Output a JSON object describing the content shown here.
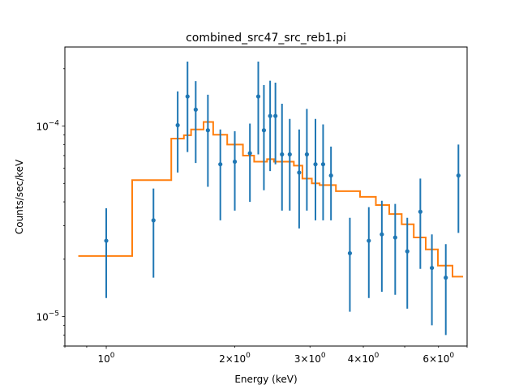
{
  "chart_data": {
    "type": "scatter",
    "title": "combined_src47_src_reb1.pi",
    "xlabel": "Energy (keV)",
    "ylabel": "Counts/sec/keV",
    "x_scale": "log",
    "y_scale": "log",
    "xlim": [
      0.8,
      7.0
    ],
    "ylim": [
      7e-06,
      0.00026
    ],
    "grid": false,
    "legend": "none",
    "x_major_ticks": [
      {
        "value": 1,
        "base": "10",
        "exp": "0"
      }
    ],
    "x_minor_labeled_ticks": [
      {
        "value": 2,
        "mant": "2",
        "base": "10",
        "exp": "0"
      },
      {
        "value": 3,
        "mant": "3",
        "base": "10",
        "exp": "0"
      },
      {
        "value": 4,
        "mant": "4",
        "base": "10",
        "exp": "0"
      },
      {
        "value": 6,
        "mant": "6",
        "base": "10",
        "exp": "0"
      }
    ],
    "y_major_ticks": [
      {
        "value": 1e-05,
        "base": "10",
        "exp": "−5"
      },
      {
        "value": 0.0001,
        "base": "10",
        "exp": "−4"
      }
    ],
    "series": [
      {
        "kind": "errorbar",
        "color": "#1f77b4",
        "points": [
          {
            "x": 1.0,
            "y": 2.5e-05,
            "ylo": 1.25e-05,
            "yhi": 3.7e-05
          },
          {
            "x": 1.29,
            "y": 3.2e-05,
            "ylo": 1.6e-05,
            "yhi": 4.7e-05
          },
          {
            "x": 1.47,
            "y": 0.000101,
            "ylo": 5.7e-05,
            "yhi": 0.000152
          },
          {
            "x": 1.55,
            "y": 0.000143,
            "ylo": 7.3e-05,
            "yhi": 0.000218
          },
          {
            "x": 1.62,
            "y": 0.000122,
            "ylo": 6.4e-05,
            "yhi": 0.000172
          },
          {
            "x": 1.73,
            "y": 9.5e-05,
            "ylo": 4.8e-05,
            "yhi": 0.000146
          },
          {
            "x": 1.85,
            "y": 6.3e-05,
            "ylo": 3.2e-05,
            "yhi": 9.6e-05
          },
          {
            "x": 2.0,
            "y": 6.5e-05,
            "ylo": 3.6e-05,
            "yhi": 9.4e-05
          },
          {
            "x": 2.17,
            "y": 7.2e-05,
            "ylo": 4e-05,
            "yhi": 0.000103
          },
          {
            "x": 2.27,
            "y": 0.000143,
            "ylo": 7.1e-05,
            "yhi": 0.000218
          },
          {
            "x": 2.34,
            "y": 9.5e-05,
            "ylo": 4.6e-05,
            "yhi": 0.000164
          },
          {
            "x": 2.42,
            "y": 0.000113,
            "ylo": 5.8e-05,
            "yhi": 0.000173
          },
          {
            "x": 2.49,
            "y": 0.000113,
            "ylo": 6.3e-05,
            "yhi": 0.000169
          },
          {
            "x": 2.58,
            "y": 7.1e-05,
            "ylo": 3.6e-05,
            "yhi": 0.000131
          },
          {
            "x": 2.69,
            "y": 7.1e-05,
            "ylo": 3.6e-05,
            "yhi": 0.000109
          },
          {
            "x": 2.83,
            "y": 5.7e-05,
            "ylo": 2.9e-05,
            "yhi": 9.6e-05
          },
          {
            "x": 2.95,
            "y": 7.1e-05,
            "ylo": 3.6e-05,
            "yhi": 0.000123
          },
          {
            "x": 3.09,
            "y": 6.3e-05,
            "ylo": 3.2e-05,
            "yhi": 0.000109
          },
          {
            "x": 3.22,
            "y": 6.3e-05,
            "ylo": 3.2e-05,
            "yhi": 0.000102
          },
          {
            "x": 3.36,
            "y": 5.5e-05,
            "ylo": 3.2e-05,
            "yhi": 7.8e-05
          },
          {
            "x": 3.72,
            "y": 2.15e-05,
            "ylo": 1.06e-05,
            "yhi": 3.3e-05
          },
          {
            "x": 4.12,
            "y": 2.5e-05,
            "ylo": 1.25e-05,
            "yhi": 3.75e-05
          },
          {
            "x": 4.42,
            "y": 2.7e-05,
            "ylo": 1.35e-05,
            "yhi": 4.05e-05
          },
          {
            "x": 4.75,
            "y": 2.6e-05,
            "ylo": 1.3e-05,
            "yhi": 3.9e-05
          },
          {
            "x": 5.07,
            "y": 2.2e-05,
            "ylo": 1.1e-05,
            "yhi": 3.3e-05
          },
          {
            "x": 5.44,
            "y": 3.55e-05,
            "ylo": 1.78e-05,
            "yhi": 5.3e-05
          },
          {
            "x": 5.79,
            "y": 1.8e-05,
            "ylo": 9e-06,
            "yhi": 2.7e-05
          },
          {
            "x": 6.24,
            "y": 1.6e-05,
            "ylo": 8e-06,
            "yhi": 2.4e-05
          },
          {
            "x": 6.68,
            "y": 5.5e-05,
            "ylo": 2.75e-05,
            "yhi": 8e-05
          }
        ]
      },
      {
        "kind": "step",
        "color": "#ff7f0e",
        "points": [
          {
            "x": 0.86,
            "y": 2.08e-05
          },
          {
            "x": 1.15,
            "y": 2.08e-05
          },
          {
            "x": 1.15,
            "y": 5.2e-05
          },
          {
            "x": 1.42,
            "y": 5.2e-05
          },
          {
            "x": 1.42,
            "y": 8.6e-05
          },
          {
            "x": 1.52,
            "y": 8.6e-05
          },
          {
            "x": 1.52,
            "y": 8.95e-05
          },
          {
            "x": 1.58,
            "y": 8.95e-05
          },
          {
            "x": 1.58,
            "y": 9.6e-05
          },
          {
            "x": 1.69,
            "y": 9.6e-05
          },
          {
            "x": 1.69,
            "y": 0.000105
          },
          {
            "x": 1.78,
            "y": 0.000105
          },
          {
            "x": 1.78,
            "y": 9e-05
          },
          {
            "x": 1.92,
            "y": 9e-05
          },
          {
            "x": 1.92,
            "y": 8e-05
          },
          {
            "x": 2.09,
            "y": 8e-05
          },
          {
            "x": 2.09,
            "y": 7e-05
          },
          {
            "x": 2.22,
            "y": 7e-05
          },
          {
            "x": 2.22,
            "y": 6.5e-05
          },
          {
            "x": 2.38,
            "y": 6.5e-05
          },
          {
            "x": 2.38,
            "y": 6.7e-05
          },
          {
            "x": 2.47,
            "y": 6.7e-05
          },
          {
            "x": 2.47,
            "y": 6.5e-05
          },
          {
            "x": 2.75,
            "y": 6.5e-05
          },
          {
            "x": 2.75,
            "y": 6.2e-05
          },
          {
            "x": 2.88,
            "y": 6.2e-05
          },
          {
            "x": 2.88,
            "y": 5.3e-05
          },
          {
            "x": 3.03,
            "y": 5.3e-05
          },
          {
            "x": 3.03,
            "y": 5e-05
          },
          {
            "x": 3.16,
            "y": 5e-05
          },
          {
            "x": 3.16,
            "y": 4.9e-05
          },
          {
            "x": 3.45,
            "y": 4.9e-05
          },
          {
            "x": 3.45,
            "y": 4.55e-05
          },
          {
            "x": 3.93,
            "y": 4.55e-05
          },
          {
            "x": 3.93,
            "y": 4.25e-05
          },
          {
            "x": 4.28,
            "y": 4.25e-05
          },
          {
            "x": 4.28,
            "y": 3.85e-05
          },
          {
            "x": 4.6,
            "y": 3.85e-05
          },
          {
            "x": 4.6,
            "y": 3.45e-05
          },
          {
            "x": 4.92,
            "y": 3.45e-05
          },
          {
            "x": 4.92,
            "y": 3.05e-05
          },
          {
            "x": 5.25,
            "y": 3.05e-05
          },
          {
            "x": 5.25,
            "y": 2.6e-05
          },
          {
            "x": 5.6,
            "y": 2.6e-05
          },
          {
            "x": 5.6,
            "y": 2.25e-05
          },
          {
            "x": 5.98,
            "y": 2.25e-05
          },
          {
            "x": 5.98,
            "y": 1.85e-05
          },
          {
            "x": 6.47,
            "y": 1.85e-05
          },
          {
            "x": 6.47,
            "y": 1.62e-05
          },
          {
            "x": 6.85,
            "y": 1.62e-05
          }
        ]
      }
    ]
  }
}
